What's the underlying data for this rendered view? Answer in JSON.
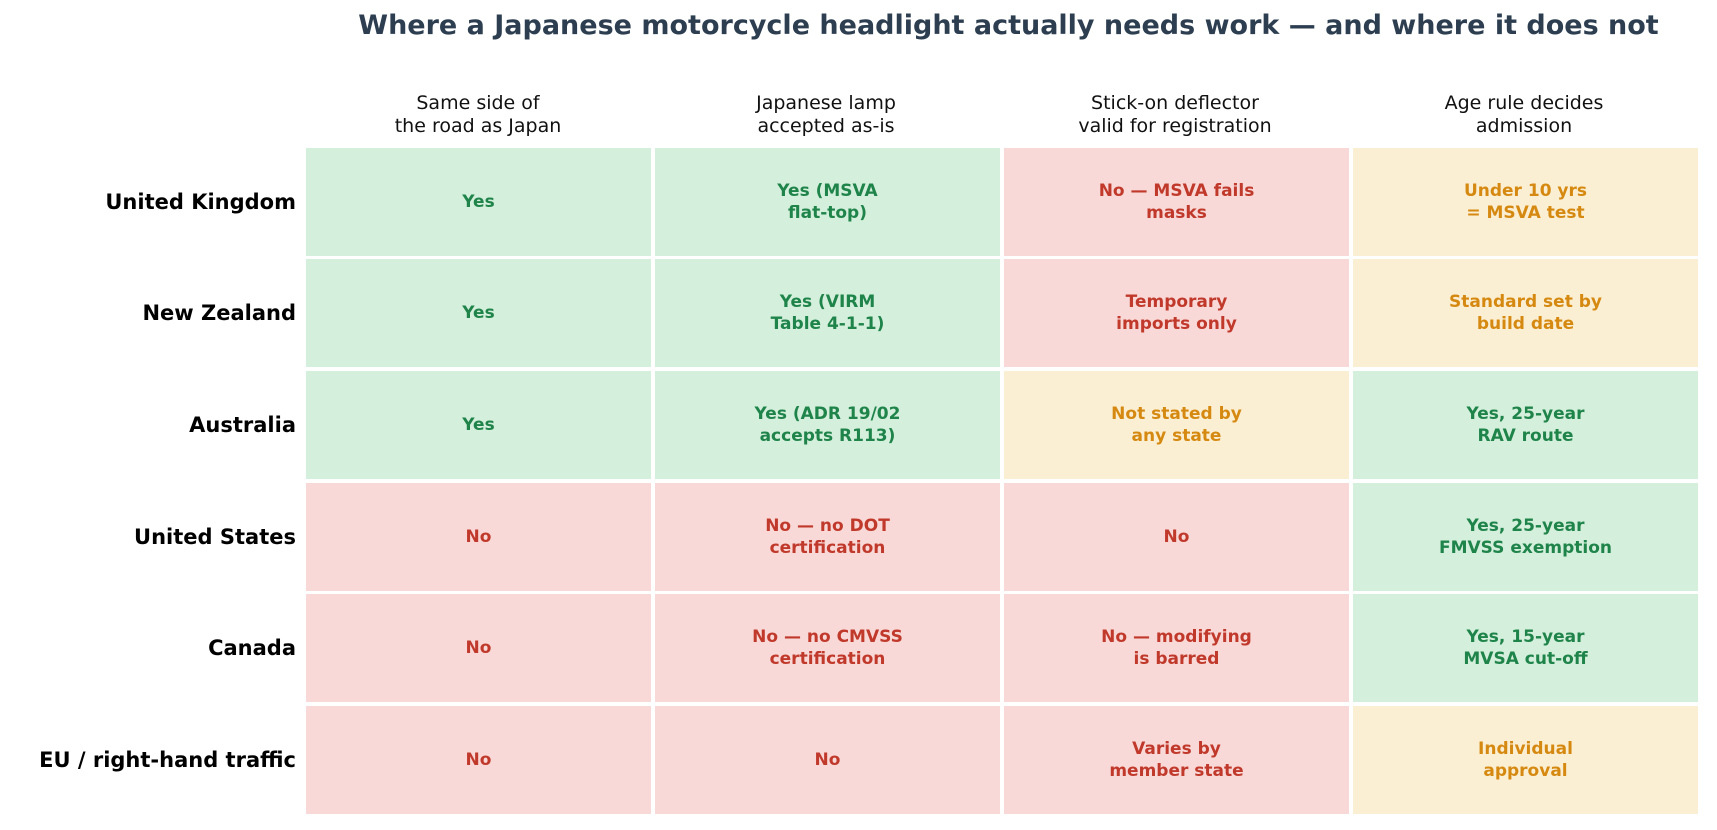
{
  "chart_data": {
    "type": "table",
    "title": "Where a Japanese motorcycle headlight actually needs work — and where it does not",
    "columns": [
      "Same side of\nthe road as Japan",
      "Japanese lamp\naccepted as-is",
      "Stick-on deflector\nvalid for registration",
      "Age rule decides\nadmission"
    ],
    "rows": [
      {
        "label": "United Kingdom",
        "cells": [
          {
            "text": "Yes",
            "status": "yes"
          },
          {
            "text": "Yes (MSVA\nflat-top)",
            "status": "yes"
          },
          {
            "text": "No — MSVA fails\nmasks",
            "status": "no"
          },
          {
            "text": "Under 10 yrs\n= MSVA test",
            "status": "partial"
          }
        ]
      },
      {
        "label": "New Zealand",
        "cells": [
          {
            "text": "Yes",
            "status": "yes"
          },
          {
            "text": "Yes (VIRM\nTable 4-1-1)",
            "status": "yes"
          },
          {
            "text": "Temporary\nimports only",
            "status": "no"
          },
          {
            "text": "Standard set by\nbuild date",
            "status": "partial"
          }
        ]
      },
      {
        "label": "Australia",
        "cells": [
          {
            "text": "Yes",
            "status": "yes"
          },
          {
            "text": "Yes (ADR 19/02\naccepts R113)",
            "status": "yes"
          },
          {
            "text": "Not stated by\nany state",
            "status": "partial"
          },
          {
            "text": "Yes, 25-year\nRAV route",
            "status": "yes"
          }
        ]
      },
      {
        "label": "United States",
        "cells": [
          {
            "text": "No",
            "status": "no"
          },
          {
            "text": "No — no DOT\ncertification",
            "status": "no"
          },
          {
            "text": "No",
            "status": "no"
          },
          {
            "text": "Yes, 25-year\nFMVSS exemption",
            "status": "yes"
          }
        ]
      },
      {
        "label": "Canada",
        "cells": [
          {
            "text": "No",
            "status": "no"
          },
          {
            "text": "No — no CMVSS\ncertification",
            "status": "no"
          },
          {
            "text": "No — modifying\nis barred",
            "status": "no"
          },
          {
            "text": "Yes, 15-year\nMVSA cut-off",
            "status": "yes"
          }
        ]
      },
      {
        "label": "EU / right-hand traffic",
        "cells": [
          {
            "text": "No",
            "status": "no"
          },
          {
            "text": "No",
            "status": "no"
          },
          {
            "text": "Varies by\nmember state",
            "status": "no"
          },
          {
            "text": "Individual\napproval",
            "status": "partial"
          }
        ]
      }
    ],
    "colors": {
      "yes_bg": "#d5efdd",
      "yes_text": "#1e8449",
      "no_bg": "#f9d9d7",
      "no_text": "#c0392b",
      "partial_bg": "#fbefd3",
      "partial_text": "#d68910",
      "title": "#2c3e50"
    }
  }
}
